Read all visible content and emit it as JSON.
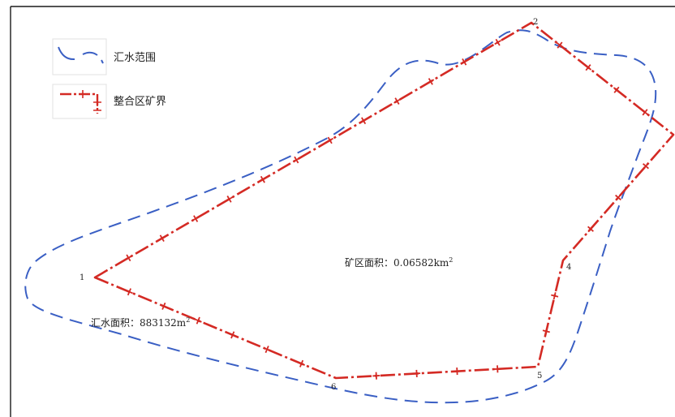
{
  "legend": {
    "catchment_label": "汇水范围",
    "boundary_label": "整合区矿界"
  },
  "points": [
    {
      "id": "point-1",
      "label": "1"
    },
    {
      "id": "point-2",
      "label": "2"
    },
    {
      "id": "point-3",
      "label": ""
    },
    {
      "id": "point-4",
      "label": "4"
    },
    {
      "id": "point-5",
      "label": "5"
    },
    {
      "id": "point-6",
      "label": "6"
    }
  ],
  "annotations": {
    "mine_area_text": "矿区面积：0.06582km",
    "mine_area_sup": "2",
    "catchment_area_text": "汇水面积：883132m",
    "catchment_area_sup": "2"
  },
  "colors": {
    "catchment_line": "#3a5fc4",
    "boundary_line": "#d42a24",
    "frame": "#1a1a1a"
  }
}
